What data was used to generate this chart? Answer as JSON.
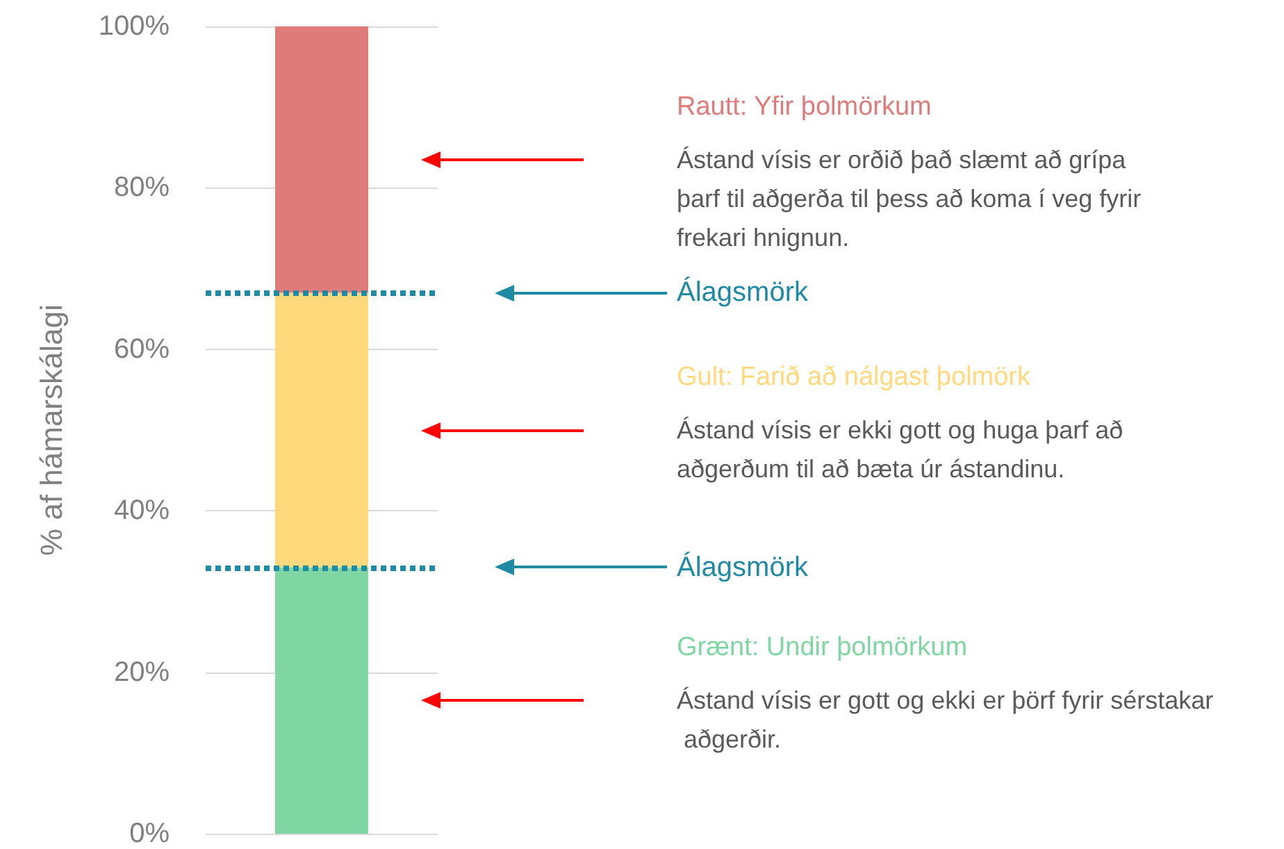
{
  "chart_data": {
    "type": "bar",
    "stacked": true,
    "ylabel": "% af hámarskálagi",
    "categories": [
      null
    ],
    "series": [
      {
        "name": "Grænt: Undir þolmörkum",
        "color": "#80d6a3",
        "values": [
          33
        ]
      },
      {
        "name": "Gult: Farið að nálgast þolmörk",
        "color": "#ffd97c",
        "values": [
          34
        ]
      },
      {
        "name": "Rautt: Yfir þolmörkum",
        "color": "#e07b7b",
        "values": [
          33
        ]
      }
    ],
    "ylim": [
      0,
      100
    ],
    "yticks": [
      {
        "value": 0,
        "label": "0%"
      },
      {
        "value": 20,
        "label": "20%"
      },
      {
        "value": 40,
        "label": "40%"
      },
      {
        "value": 60,
        "label": "60%"
      },
      {
        "value": 80,
        "label": "80%"
      },
      {
        "value": 100,
        "label": "100%"
      }
    ],
    "ref_lines": [
      {
        "axis": "y",
        "value": 33,
        "label": "Álagsmörk",
        "color": "#1f8aa3",
        "line_style": "dotted"
      },
      {
        "axis": "y",
        "value": 67,
        "label": "Álagsmörk",
        "color": "#1f8aa3",
        "line_style": "dotted"
      }
    ],
    "annotations": [
      "Ástand vísis er gott og ekki er þörf fyrir sérstakar aðgerðir.",
      "Ástand vísis er ekki gott og huga þarf að aðgerðum til að bæta úr ástandinu.",
      "Ástand vísis er orðið það slæmt að grípa þarf til aðgerða til þess að koma í veg fyrir frekari hnignun."
    ],
    "grid": "y",
    "legend": false,
    "tick_labels": "y"
  }
}
